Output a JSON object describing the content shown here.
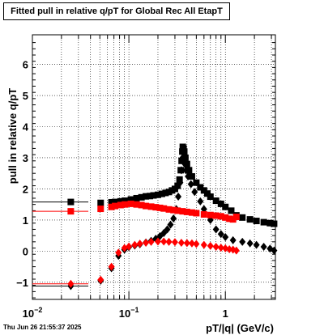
{
  "title": "Fitted pull in relative q/pT for Global Rec All EtapT",
  "footer": "Thu Jun 26 21:55:37 2025",
  "chart_data": {
    "type": "scatter",
    "title": "Fitted pull in relative q/pT for Global Rec All EtapT",
    "xlabel": "pT/|q| (GeV/c)",
    "ylabel": "pull in relative q/pT",
    "xscale": "log",
    "xlim": [
      0.01,
      3.3
    ],
    "ylim": [
      -1.55,
      6.95
    ],
    "grid": true,
    "x_tick_labels": [
      "10^-2",
      "10^-1",
      "1"
    ],
    "y_tick_labels": [
      "-1",
      "0",
      "1",
      "2",
      "3",
      "4",
      "5",
      "6"
    ],
    "series": [
      {
        "color": "#000000",
        "marker": "square",
        "points": [
          [
            0.025,
            1.58
          ],
          [
            0.051,
            1.55
          ],
          [
            0.066,
            1.57
          ],
          [
            0.072,
            1.58
          ],
          [
            0.082,
            1.6
          ],
          [
            0.091,
            1.62
          ],
          [
            0.105,
            1.66
          ],
          [
            0.12,
            1.7
          ],
          [
            0.135,
            1.73
          ],
          [
            0.15,
            1.76
          ],
          [
            0.165,
            1.77
          ],
          [
            0.18,
            1.79
          ],
          [
            0.2,
            1.81
          ],
          [
            0.22,
            1.84
          ],
          [
            0.24,
            1.87
          ],
          [
            0.26,
            1.9
          ],
          [
            0.28,
            1.95
          ],
          [
            0.3,
            2.0
          ],
          [
            0.32,
            2.1
          ],
          [
            0.335,
            2.3
          ],
          [
            0.345,
            2.6
          ],
          [
            0.352,
            2.9
          ],
          [
            0.358,
            3.2
          ],
          [
            0.362,
            3.35
          ],
          [
            0.368,
            3.3
          ],
          [
            0.375,
            3.2
          ],
          [
            0.385,
            3.0
          ],
          [
            0.4,
            2.8
          ],
          [
            0.42,
            2.6
          ],
          [
            0.45,
            2.4
          ],
          [
            0.5,
            2.2
          ],
          [
            0.55,
            2.05
          ],
          [
            0.6,
            1.95
          ],
          [
            0.65,
            1.85
          ],
          [
            0.7,
            1.75
          ],
          [
            0.8,
            1.62
          ],
          [
            0.9,
            1.52
          ],
          [
            1.0,
            1.42
          ],
          [
            1.15,
            1.3
          ],
          [
            1.3,
            1.15
          ],
          [
            1.5,
            1.08
          ],
          [
            1.8,
            1.02
          ],
          [
            2.1,
            0.97
          ],
          [
            2.5,
            0.93
          ],
          [
            2.9,
            0.9
          ],
          [
            3.2,
            0.88
          ]
        ]
      },
      {
        "color": "#000000",
        "marker": "diamond",
        "points": [
          [
            0.025,
            -1.12
          ],
          [
            0.051,
            -0.95
          ],
          [
            0.066,
            -0.55
          ],
          [
            0.078,
            -0.15
          ],
          [
            0.09,
            0.05
          ],
          [
            0.1,
            0.13
          ],
          [
            0.115,
            0.18
          ],
          [
            0.13,
            0.22
          ],
          [
            0.15,
            0.28
          ],
          [
            0.17,
            0.33
          ],
          [
            0.19,
            0.4
          ],
          [
            0.21,
            0.48
          ],
          [
            0.23,
            0.58
          ],
          [
            0.25,
            0.7
          ],
          [
            0.27,
            0.85
          ],
          [
            0.29,
            1.05
          ],
          [
            0.31,
            1.35
          ],
          [
            0.325,
            1.75
          ],
          [
            0.34,
            2.2
          ],
          [
            0.35,
            2.6
          ],
          [
            0.36,
            3.0
          ],
          [
            0.372,
            2.95
          ],
          [
            0.38,
            2.8
          ],
          [
            0.39,
            2.6
          ],
          [
            0.41,
            2.4
          ],
          [
            0.44,
            2.15
          ],
          [
            0.48,
            1.9
          ],
          [
            0.55,
            1.6
          ],
          [
            0.6,
            1.35
          ],
          [
            0.7,
            1.0
          ],
          [
            0.8,
            0.7
          ],
          [
            0.9,
            0.55
          ],
          [
            1.0,
            0.45
          ],
          [
            1.2,
            0.35
          ],
          [
            1.5,
            0.3
          ],
          [
            1.8,
            0.25
          ],
          [
            2.1,
            0.2
          ],
          [
            2.5,
            0.14
          ],
          [
            2.9,
            0.08
          ],
          [
            3.2,
            0.02
          ]
        ]
      },
      {
        "color": "#ff0000",
        "marker": "square",
        "points": [
          [
            0.025,
            1.28
          ],
          [
            0.051,
            1.36
          ],
          [
            0.066,
            1.42
          ],
          [
            0.072,
            1.45
          ],
          [
            0.082,
            1.48
          ],
          [
            0.091,
            1.5
          ],
          [
            0.105,
            1.52
          ],
          [
            0.12,
            1.5
          ],
          [
            0.135,
            1.48
          ],
          [
            0.15,
            1.45
          ],
          [
            0.17,
            1.43
          ],
          [
            0.19,
            1.41
          ],
          [
            0.21,
            1.39
          ],
          [
            0.23,
            1.37
          ],
          [
            0.26,
            1.34
          ],
          [
            0.29,
            1.32
          ],
          [
            0.32,
            1.3
          ],
          [
            0.36,
            1.28
          ],
          [
            0.4,
            1.26
          ],
          [
            0.45,
            1.24
          ],
          [
            0.5,
            1.22
          ],
          [
            0.6,
            1.18
          ],
          [
            0.7,
            1.16
          ],
          [
            0.8,
            1.14
          ],
          [
            0.9,
            1.12
          ],
          [
            1.0,
            1.08
          ],
          [
            1.1,
            1.04
          ],
          [
            1.2,
            1.02
          ],
          [
            1.3,
            1.1
          ]
        ]
      },
      {
        "color": "#ff0000",
        "marker": "diamond",
        "points": [
          [
            0.025,
            -1.05
          ],
          [
            0.051,
            -0.92
          ],
          [
            0.066,
            -0.5
          ],
          [
            0.078,
            -0.05
          ],
          [
            0.09,
            0.1
          ],
          [
            0.1,
            0.15
          ],
          [
            0.115,
            0.2
          ],
          [
            0.13,
            0.24
          ],
          [
            0.15,
            0.27
          ],
          [
            0.17,
            0.3
          ],
          [
            0.2,
            0.31
          ],
          [
            0.23,
            0.31
          ],
          [
            0.26,
            0.3
          ],
          [
            0.3,
            0.29
          ],
          [
            0.35,
            0.27
          ],
          [
            0.4,
            0.26
          ],
          [
            0.45,
            0.25
          ],
          [
            0.5,
            0.23
          ],
          [
            0.6,
            0.2
          ],
          [
            0.7,
            0.17
          ],
          [
            0.8,
            0.14
          ],
          [
            0.9,
            0.11
          ],
          [
            1.0,
            0.09
          ],
          [
            1.1,
            0.06
          ],
          [
            1.2,
            0.05
          ],
          [
            1.3,
            0.02
          ]
        ]
      }
    ]
  }
}
